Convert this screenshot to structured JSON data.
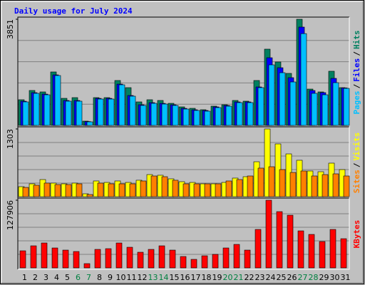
{
  "title": "Daily usage for July 2024",
  "legend_separator": "/",
  "title_color": "#0000ff",
  "categories": [
    "1",
    "2",
    "3",
    "4",
    "5",
    "6",
    "7",
    "8",
    "9",
    "10",
    "11",
    "12",
    "13",
    "14",
    "15",
    "16",
    "17",
    "18",
    "19",
    "20",
    "21",
    "22",
    "23",
    "24",
    "25",
    "26",
    "27",
    "28",
    "29",
    "30",
    "31"
  ],
  "category_colors": [
    "#000000",
    "#000000",
    "#000000",
    "#000000",
    "#000000",
    "#008040",
    "#008040",
    "#000000",
    "#000000",
    "#000000",
    "#000000",
    "#000000",
    "#008040",
    "#008040",
    "#000000",
    "#000000",
    "#000000",
    "#000000",
    "#000000",
    "#008040",
    "#008040",
    "#000000",
    "#000000",
    "#000000",
    "#000000",
    "#000000",
    "#008040",
    "#008040",
    "#000000",
    "#000000",
    "#000000"
  ],
  "chart_data": [
    {
      "type": "bar",
      "ylim": [
        0,
        3851
      ],
      "yticks": [
        3851
      ],
      "series": [
        {
          "name": "Hits",
          "color": "#008060",
          "values": [
            931,
            1267,
            1215,
            1939,
            982,
            1008,
            155,
            1008,
            1008,
            1629,
            1370,
            853,
            931,
            905,
            801,
            672,
            620,
            569,
            698,
            750,
            905,
            879,
            1629,
            2766,
            2301,
            1887,
            3851,
            1318,
            1215,
            1965,
            1370
          ]
        },
        {
          "name": "Files",
          "color": "#0000ff",
          "values": [
            878,
            1188,
            1136,
            1834,
            904,
            904,
            140,
            981,
            981,
            1498,
            1085,
            749,
            826,
            800,
            749,
            619,
            568,
            542,
            671,
            723,
            852,
            852,
            1395,
            2455,
            2093,
            1732,
            3567,
            1266,
            1189,
            1706,
            1360
          ]
        },
        {
          "name": "Pages",
          "color": "#00c0ff",
          "values": [
            853,
            1163,
            1111,
            1809,
            879,
            879,
            129,
            956,
            956,
            1473,
            1060,
            724,
            801,
            775,
            724,
            594,
            543,
            517,
            646,
            698,
            827,
            827,
            1370,
            2197,
            1912,
            1576,
            3330,
            1163,
            1111,
            1550,
            1344
          ]
        }
      ]
    },
    {
      "type": "bar",
      "ylim": [
        0,
        1303
      ],
      "yticks": [
        1303
      ],
      "series": [
        {
          "name": "Visits",
          "color": "#ffff00",
          "values": [
            192,
            247,
            329,
            261,
            247,
            261,
            55,
            302,
            274,
            302,
            274,
            316,
            425,
            412,
            343,
            288,
            274,
            247,
            247,
            274,
            357,
            384,
            672,
            1303,
            1015,
            823,
            700,
            494,
            480,
            645,
            521
          ]
        },
        {
          "name": "Sites",
          "color": "#ff8000",
          "values": [
            178,
            220,
            261,
            233,
            233,
            247,
            41,
            261,
            247,
            247,
            247,
            302,
            398,
            384,
            316,
            247,
            247,
            247,
            247,
            302,
            329,
            398,
            549,
            576,
            521,
            466,
            494,
            398,
            425,
            439,
            398
          ]
        }
      ]
    },
    {
      "type": "bar",
      "ylim": [
        0,
        127906
      ],
      "yticks": [
        127906
      ],
      "series": [
        {
          "name": "KBytes",
          "color": "#ff0000",
          "values": [
            32304,
            41726,
            47110,
            37688,
            33650,
            30958,
            8076,
            34996,
            36342,
            47110,
            39034,
            29612,
            34996,
            41726,
            33650,
            21536,
            16152,
            22882,
            25574,
            37688,
            44418,
            33650,
            72684,
            127906,
            106334,
            99604,
            69992,
            63262,
            49802,
            72684,
            55186
          ]
        }
      ]
    }
  ]
}
